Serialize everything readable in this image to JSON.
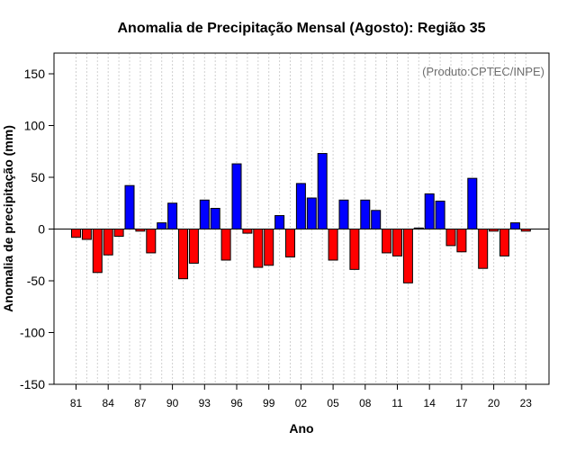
{
  "chart_data": {
    "type": "bar",
    "title": "Anomalia de Precipitação Mensal (Agosto): Região 35",
    "xlabel": "Ano",
    "ylabel": "Anomalia de precipitação (mm)",
    "credit": "(Produto:CPTEC/INPE)",
    "ylim": [
      -150,
      170
    ],
    "yticks": [
      -150,
      -100,
      -50,
      0,
      50,
      100,
      150
    ],
    "xtick_labels": [
      "81",
      "84",
      "87",
      "90",
      "93",
      "96",
      "99",
      "02",
      "05",
      "08",
      "11",
      "14",
      "17",
      "20",
      "23"
    ],
    "xtick_every": 3,
    "grid": true,
    "colors": {
      "positive": "#0000ff",
      "negative": "#ff0000"
    },
    "categories": [
      1981,
      1982,
      1983,
      1984,
      1985,
      1986,
      1987,
      1988,
      1989,
      1990,
      1991,
      1992,
      1993,
      1994,
      1995,
      1996,
      1997,
      1998,
      1999,
      2000,
      2001,
      2002,
      2003,
      2004,
      2005,
      2006,
      2007,
      2008,
      2009,
      2010,
      2011,
      2012,
      2013,
      2014,
      2015,
      2016,
      2017,
      2018,
      2019,
      2020,
      2021,
      2022,
      2023
    ],
    "values": [
      -8,
      -10,
      -42,
      -25,
      -7,
      42,
      -2,
      -23,
      6,
      25,
      -48,
      -33,
      28,
      20,
      -30,
      63,
      -4,
      -37,
      -35,
      13,
      -27,
      44,
      30,
      73,
      -30,
      28,
      -39,
      28,
      18,
      -23,
      -26,
      -52,
      1,
      34,
      27,
      -16,
      -22,
      49,
      -38,
      -2,
      -26,
      6,
      -2
    ]
  }
}
